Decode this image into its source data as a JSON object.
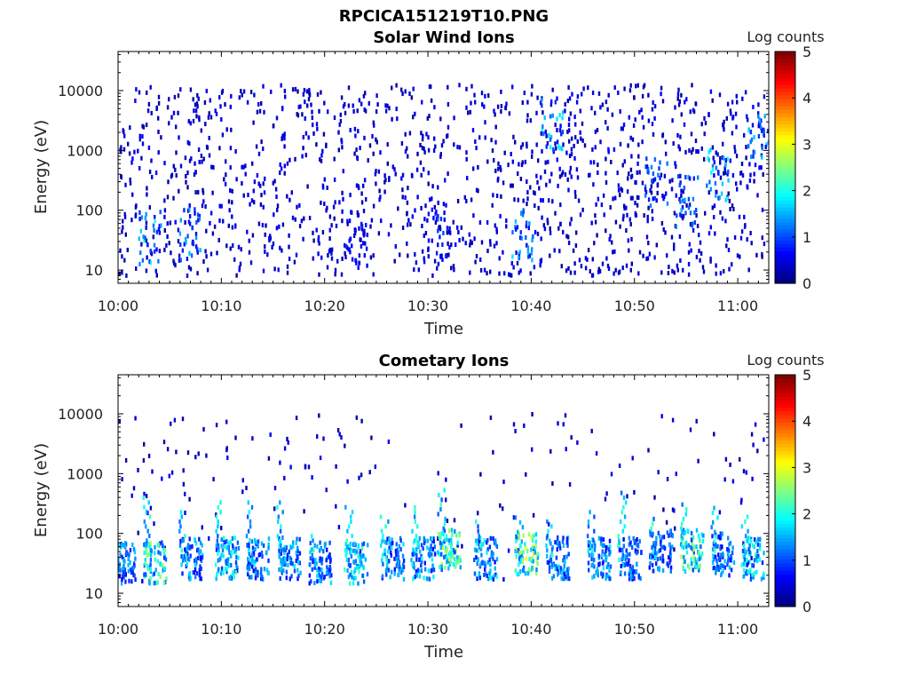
{
  "figure_title": "RPCICA151219T10.PNG",
  "chart_data": [
    {
      "type": "heatmap",
      "title": "Solar Wind Ions",
      "xlabel": "Time",
      "ylabel": "Energy (eV)",
      "x_ticks": [
        "10:00",
        "10:10",
        "10:20",
        "10:30",
        "10:40",
        "10:50",
        "11:00"
      ],
      "y_ticks": [
        "10",
        "100",
        "1000",
        "10000"
      ],
      "y_scale": "log",
      "ylim": [
        6,
        45000
      ],
      "colorbar": {
        "label": "Log counts",
        "ticks": [
          "0",
          "1",
          "2",
          "3",
          "4",
          "5"
        ],
        "range": [
          0,
          5
        ],
        "colormap": "jet"
      },
      "features": [
        {
          "time_min": 3,
          "energy_ev": 25,
          "log_counts": 1.8
        },
        {
          "time_min": 7,
          "energy_ev": 30,
          "log_counts": 1.5
        },
        {
          "time_min": 23,
          "energy_ev": 25,
          "log_counts": 0.8
        },
        {
          "time_min": 31,
          "energy_ev": 30,
          "log_counts": 0.9
        },
        {
          "time_min": 39,
          "energy_ev": 30,
          "log_counts": 1.6
        },
        {
          "time_min": 42,
          "energy_ev": 2000,
          "log_counts": 1.8
        },
        {
          "time_min": 52,
          "energy_ev": 200,
          "log_counts": 1.2
        },
        {
          "time_min": 55,
          "energy_ev": 100,
          "log_counts": 1.4
        },
        {
          "time_min": 58,
          "energy_ev": 300,
          "log_counts": 1.8
        },
        {
          "time_min": 62,
          "energy_ev": 1500,
          "log_counts": 1.5
        }
      ]
    },
    {
      "type": "heatmap",
      "title": "Cometary Ions",
      "xlabel": "Time",
      "ylabel": "Energy (eV)",
      "x_ticks": [
        "10:00",
        "10:10",
        "10:20",
        "10:30",
        "10:40",
        "10:50",
        "11:00"
      ],
      "y_ticks": [
        "10",
        "100",
        "1000",
        "10000"
      ],
      "y_scale": "log",
      "ylim": [
        6,
        45000
      ],
      "colorbar": {
        "label": "Log counts",
        "ticks": [
          "0",
          "1",
          "2",
          "3",
          "4",
          "5"
        ],
        "range": [
          0,
          5
        ],
        "colormap": "jet"
      },
      "features": [
        {
          "time_min": 0.5,
          "energy_ev": 25,
          "log_counts": 1.5
        },
        {
          "time_min": 3.5,
          "energy_ev": 25,
          "log_counts": 2.4
        },
        {
          "time_min": 7,
          "energy_ev": 30,
          "log_counts": 1.6
        },
        {
          "time_min": 10.5,
          "energy_ev": 30,
          "log_counts": 2.0
        },
        {
          "time_min": 13.5,
          "energy_ev": 30,
          "log_counts": 1.6
        },
        {
          "time_min": 16.5,
          "energy_ev": 30,
          "log_counts": 1.8
        },
        {
          "time_min": 19.5,
          "energy_ev": 25,
          "log_counts": 1.6
        },
        {
          "time_min": 23,
          "energy_ev": 25,
          "log_counts": 2.0
        },
        {
          "time_min": 26.5,
          "energy_ev": 30,
          "log_counts": 1.6
        },
        {
          "time_min": 29.5,
          "energy_ev": 30,
          "log_counts": 1.8
        },
        {
          "time_min": 32,
          "energy_ev": 40,
          "log_counts": 2.6
        },
        {
          "time_min": 35.5,
          "energy_ev": 30,
          "log_counts": 1.8
        },
        {
          "time_min": 39.5,
          "energy_ev": 35,
          "log_counts": 2.8
        },
        {
          "time_min": 42.5,
          "energy_ev": 30,
          "log_counts": 1.6
        },
        {
          "time_min": 46.5,
          "energy_ev": 30,
          "log_counts": 1.7
        },
        {
          "time_min": 49.5,
          "energy_ev": 30,
          "log_counts": 1.4
        },
        {
          "time_min": 52.5,
          "energy_ev": 40,
          "log_counts": 1.4
        },
        {
          "time_min": 55.5,
          "energy_ev": 40,
          "log_counts": 2.6
        },
        {
          "time_min": 58.5,
          "energy_ev": 35,
          "log_counts": 1.5
        },
        {
          "time_min": 61.5,
          "energy_ev": 30,
          "log_counts": 2.0
        }
      ]
    }
  ]
}
